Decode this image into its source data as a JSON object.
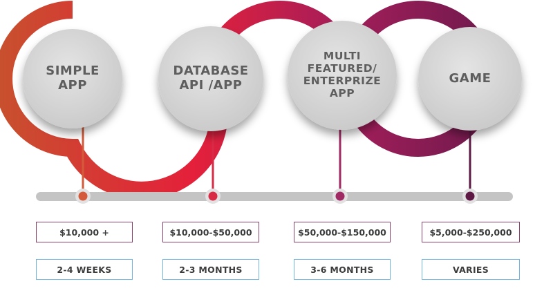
{
  "stages": [
    {
      "title": "SIMPLE\nAPP",
      "price": "$10,000 +",
      "duration": "2-4 WEEKS",
      "color": "#d35a3a"
    },
    {
      "title": "DATABASE\nAPI /APP",
      "price": "$10,000-$50,000",
      "duration": "2-3 MONTHS",
      "color": "#d82b45"
    },
    {
      "title": "MULTI\nFEATURED/\nENTERPRIZE\nAPP",
      "price": "$50,000-$150,000",
      "duration": "3-6 MONTHS",
      "color": "#a02a63"
    },
    {
      "title": "GAME",
      "price": "$5,000-$250,000",
      "duration": "VARIES",
      "color": "#5e1a45"
    }
  ],
  "colors": {
    "ribbon_start": "#c8502e",
    "ribbon_red": "#e4203a",
    "ribbon_magenta": "#a41e5a",
    "ribbon_end": "#5a1848",
    "circle_fill": "#d9d9d9",
    "timeline": "#c4c4c4",
    "price_border": "#8a3f67",
    "duration_border": "#6fb3df"
  }
}
